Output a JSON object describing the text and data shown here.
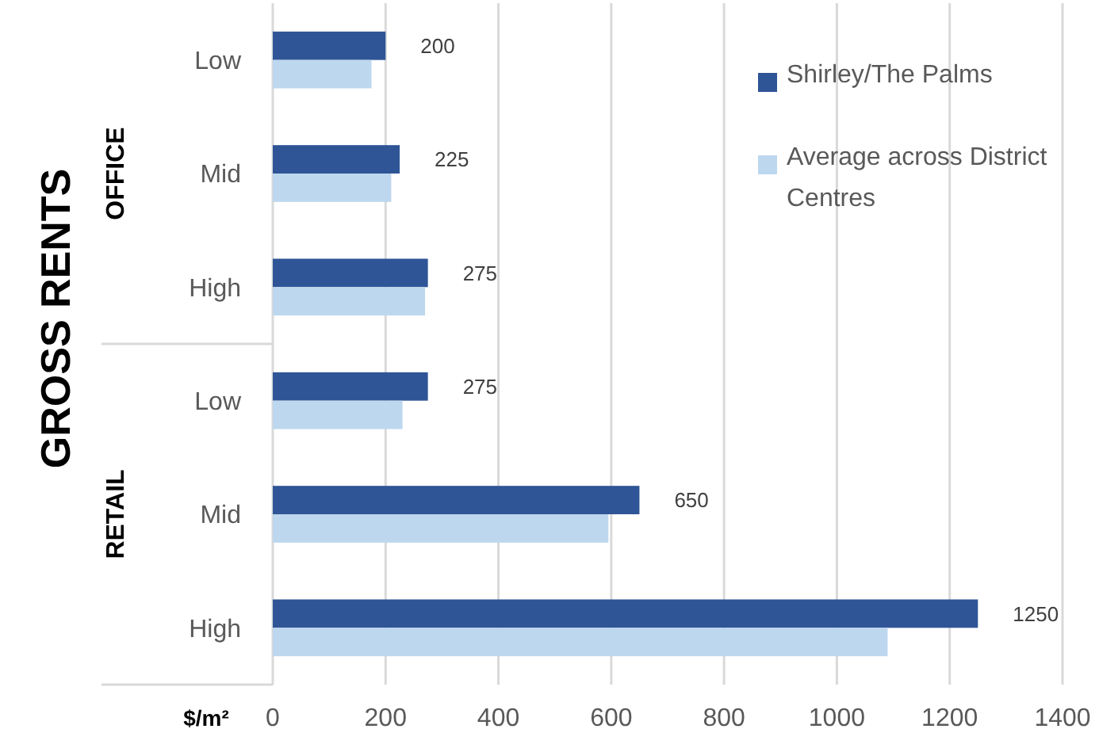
{
  "chart_data": {
    "type": "bar",
    "orientation": "horizontal",
    "ylabel": "GROSS RENTS",
    "xlabel": "$/m²",
    "categories": [
      "Low",
      "Mid",
      "High",
      "Low",
      "Mid",
      "High"
    ],
    "annotations": [
      "OFFICE",
      "RETAIL"
    ],
    "series": [
      {
        "name": "Shirley/The Palms",
        "color": "#2f5597",
        "values": [
          200,
          225,
          275,
          275,
          650,
          1250
        ],
        "value_labels": [
          "200",
          "225",
          "275",
          "275",
          "650",
          "1250"
        ]
      },
      {
        "name": "Average across District Centres",
        "color": "#bdd7ee",
        "values": [
          175,
          210,
          270,
          230,
          595,
          1090
        ]
      }
    ],
    "xlim": [
      0,
      1400
    ],
    "xticks": [
      0,
      200,
      400,
      600,
      800,
      1000,
      1200,
      1400
    ],
    "grid": "x",
    "legend": "top right"
  }
}
